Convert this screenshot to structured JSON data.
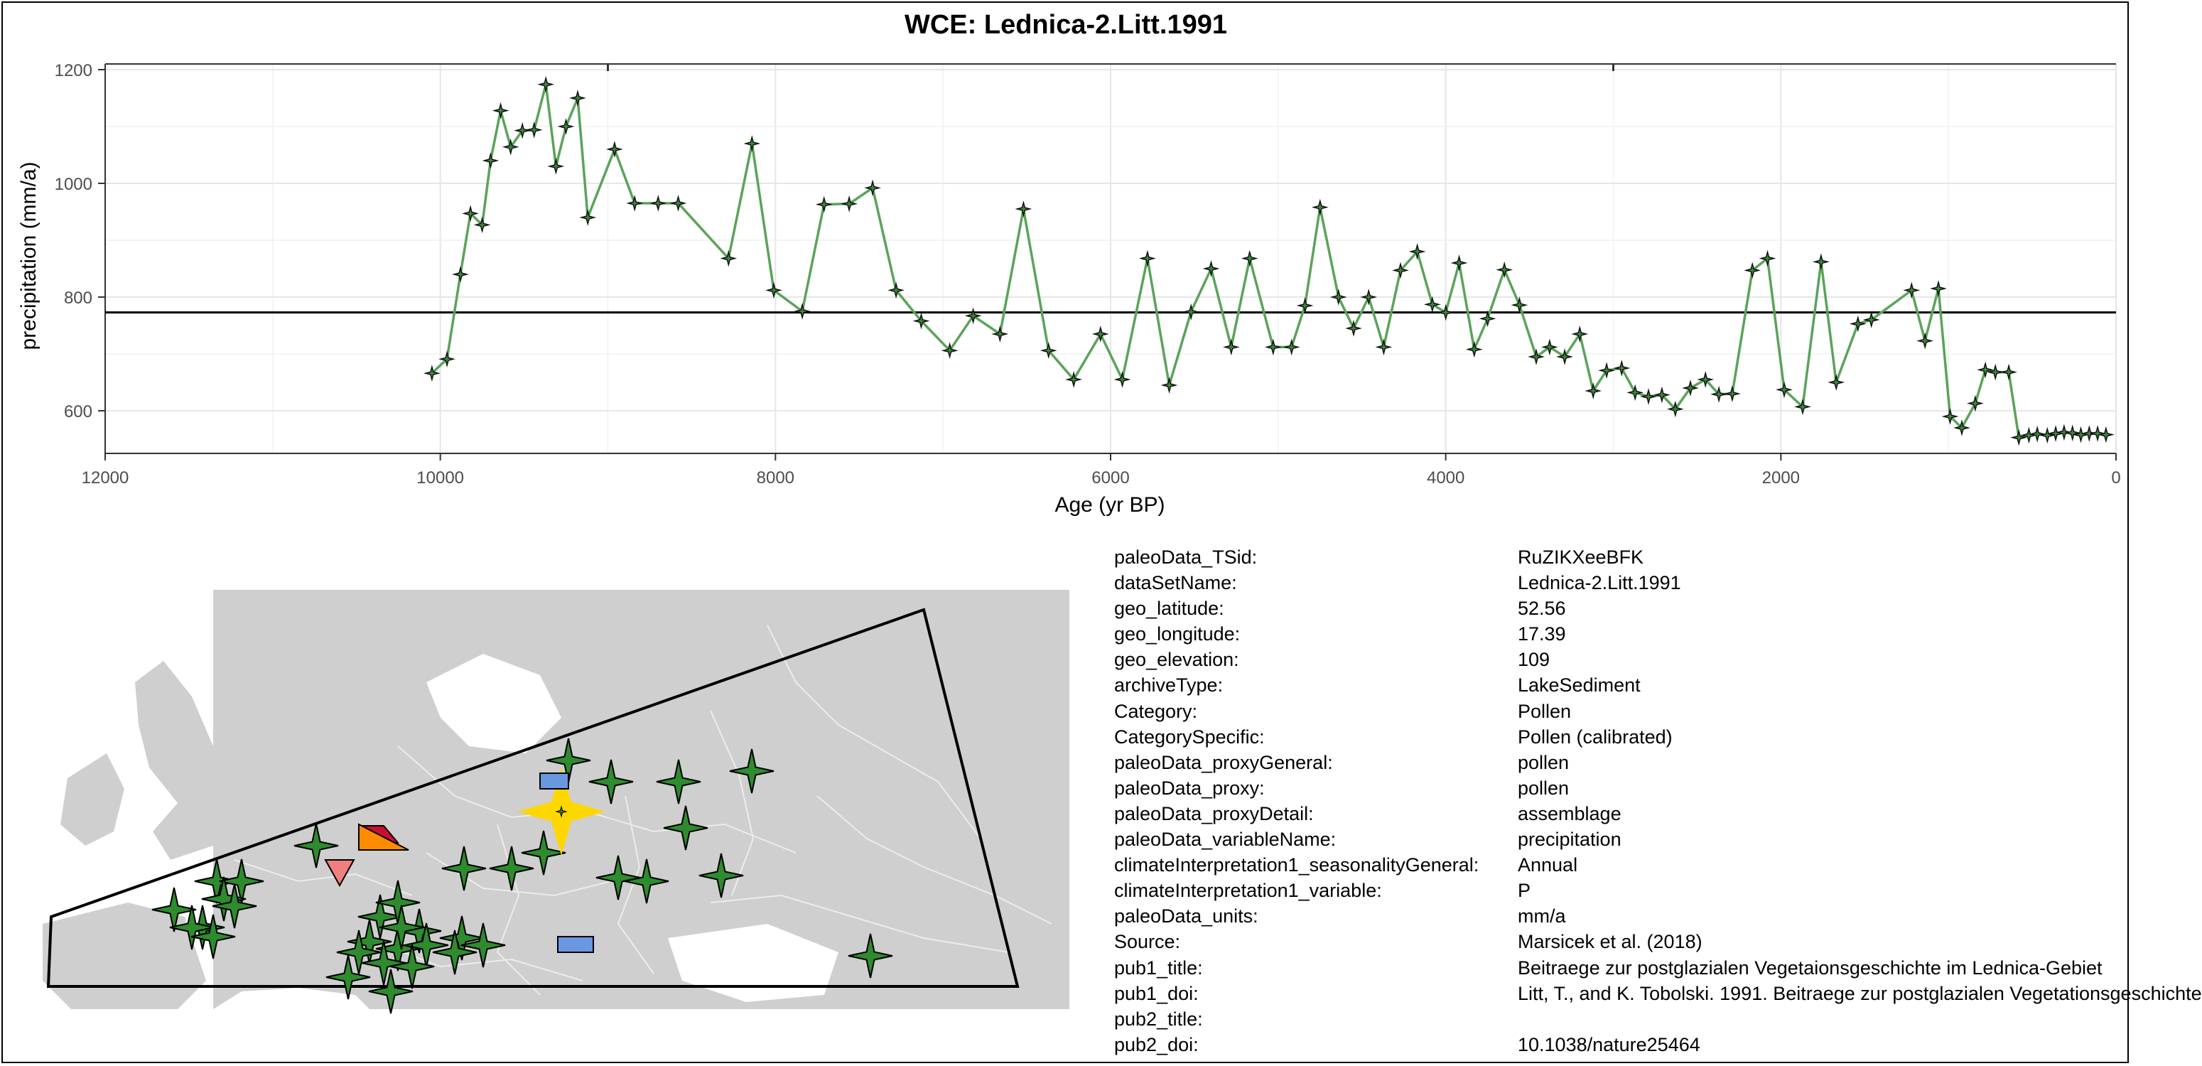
{
  "chart_data": {
    "type": "line",
    "title": "WCE: Lednica-2.Litt.1991",
    "xlabel": "Age (yr BP)",
    "ylabel": "precipitation (mm/a)",
    "xlim": [
      12000,
      0
    ],
    "ylim": [
      525,
      1210
    ],
    "x_ticks": [
      12000,
      10000,
      8000,
      6000,
      4000,
      2000,
      0
    ],
    "y_ticks": [
      600,
      800,
      1000,
      1200
    ],
    "reference_line": 773,
    "line_color": "#5aa35a",
    "grid": true,
    "series": [
      {
        "points": [
          [
            10050,
            666
          ],
          [
            9960,
            691
          ],
          [
            9880,
            840
          ],
          [
            9820,
            947
          ],
          [
            9750,
            927
          ],
          [
            9700,
            1040
          ],
          [
            9640,
            1128
          ],
          [
            9580,
            1064
          ],
          [
            9510,
            1093
          ],
          [
            9440,
            1094
          ],
          [
            9370,
            1174
          ],
          [
            9310,
            1030
          ],
          [
            9250,
            1100
          ],
          [
            9180,
            1150
          ],
          [
            9120,
            940
          ],
          [
            8960,
            1060
          ],
          [
            8840,
            965
          ],
          [
            8700,
            965
          ],
          [
            8580,
            965
          ],
          [
            8280,
            868
          ],
          [
            8140,
            1070
          ],
          [
            8010,
            812
          ],
          [
            7840,
            775
          ],
          [
            7710,
            963
          ],
          [
            7560,
            964
          ],
          [
            7420,
            992
          ],
          [
            7280,
            812
          ],
          [
            7130,
            758
          ],
          [
            6960,
            706
          ],
          [
            6820,
            767
          ],
          [
            6660,
            735
          ],
          [
            6520,
            955
          ],
          [
            6370,
            706
          ],
          [
            6220,
            655
          ],
          [
            6060,
            735
          ],
          [
            5930,
            655
          ],
          [
            5780,
            868
          ],
          [
            5650,
            645
          ],
          [
            5520,
            774
          ],
          [
            5400,
            850
          ],
          [
            5280,
            712
          ],
          [
            5170,
            868
          ],
          [
            5030,
            712
          ],
          [
            4920,
            712
          ],
          [
            4840,
            785
          ],
          [
            4750,
            958
          ],
          [
            4640,
            800
          ],
          [
            4550,
            745
          ],
          [
            4460,
            800
          ],
          [
            4370,
            712
          ],
          [
            4270,
            847
          ],
          [
            4170,
            880
          ],
          [
            4080,
            787
          ],
          [
            4000,
            773
          ],
          [
            3920,
            860
          ],
          [
            3830,
            708
          ],
          [
            3750,
            762
          ],
          [
            3650,
            848
          ],
          [
            3560,
            786
          ],
          [
            3460,
            695
          ],
          [
            3380,
            712
          ],
          [
            3290,
            695
          ],
          [
            3200,
            735
          ],
          [
            3120,
            635
          ],
          [
            3040,
            671
          ],
          [
            2950,
            675
          ],
          [
            2870,
            632
          ],
          [
            2790,
            625
          ],
          [
            2710,
            628
          ],
          [
            2630,
            603
          ],
          [
            2540,
            640
          ],
          [
            2450,
            655
          ],
          [
            2370,
            629
          ],
          [
            2290,
            630
          ],
          [
            2170,
            847
          ],
          [
            2080,
            868
          ],
          [
            1980,
            637
          ],
          [
            1870,
            607
          ],
          [
            1760,
            862
          ],
          [
            1670,
            650
          ],
          [
            1540,
            753
          ],
          [
            1460,
            760
          ],
          [
            1220,
            812
          ],
          [
            1140,
            723
          ],
          [
            1060,
            815
          ],
          [
            990,
            590
          ],
          [
            920,
            570
          ],
          [
            840,
            613
          ],
          [
            780,
            672
          ],
          [
            720,
            668
          ],
          [
            640,
            668
          ],
          [
            580,
            553
          ],
          [
            520,
            557
          ],
          [
            470,
            559
          ],
          [
            410,
            557
          ],
          [
            360,
            560
          ],
          [
            310,
            562
          ],
          [
            260,
            561
          ],
          [
            210,
            558
          ],
          [
            160,
            560
          ],
          [
            110,
            560
          ],
          [
            60,
            558
          ]
        ]
      }
    ]
  },
  "map": {
    "land_color": "#cfcfcf",
    "border_color": "#ececec",
    "marker_color": "#2e8b2e",
    "highlight_color": "#ffd700"
  },
  "metadata": [
    {
      "key": "paleoData_TSid:",
      "value": "RuZIKXeeBFK"
    },
    {
      "key": "dataSetName:",
      "value": "Lednica-2.Litt.1991"
    },
    {
      "key": "geo_latitude:",
      "value": "52.56"
    },
    {
      "key": "geo_longitude:",
      "value": "17.39"
    },
    {
      "key": "geo_elevation:",
      "value": "109"
    },
    {
      "key": "archiveType:",
      "value": "LakeSediment"
    },
    {
      "key": "Category:",
      "value": "Pollen"
    },
    {
      "key": "CategorySpecific:",
      "value": "Pollen (calibrated)"
    },
    {
      "key": "paleoData_proxyGeneral:",
      "value": "pollen"
    },
    {
      "key": "paleoData_proxy:",
      "value": "pollen"
    },
    {
      "key": "paleoData_proxyDetail:",
      "value": "assemblage"
    },
    {
      "key": "paleoData_variableName:",
      "value": "precipitation"
    },
    {
      "key": "climateInterpretation1_seasonalityGeneral:",
      "value": "Annual"
    },
    {
      "key": "climateInterpretation1_variable:",
      "value": "P"
    },
    {
      "key": "paleoData_units:",
      "value": "mm/a"
    },
    {
      "key": "Source:",
      "value": "Marsicek et al. (2018)"
    },
    {
      "key": "pub1_title:",
      "value": "Beitraege zur postglazialen Vegetaionsgeschichte im Lednica-Gebiet"
    },
    {
      "key": "pub1_doi:",
      "value": "Litt, T., and K. Tobolski. 1991. Beitraege zur postglazialen Vegetationsgeschichte"
    },
    {
      "key": "pub2_title:",
      "value": ""
    },
    {
      "key": "pub2_doi:",
      "value": "10.1038/nature25464"
    }
  ]
}
